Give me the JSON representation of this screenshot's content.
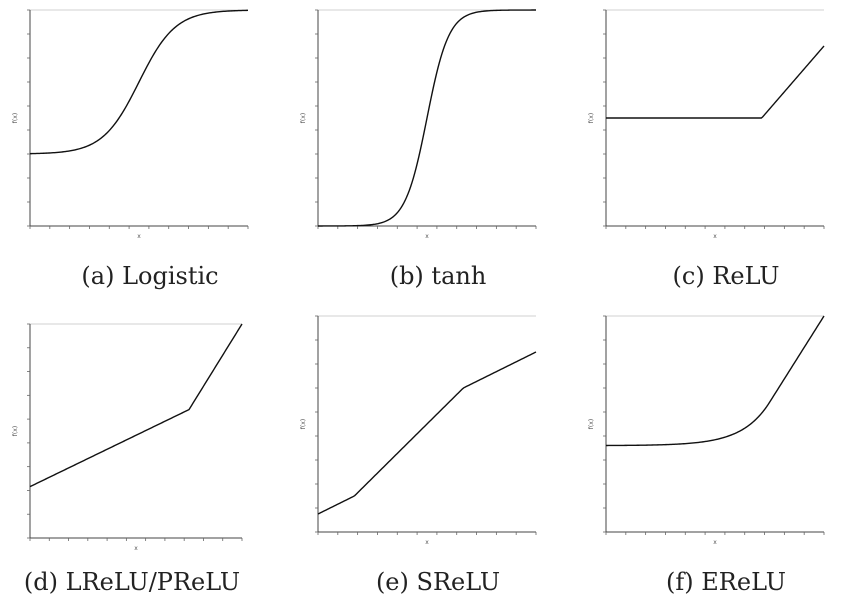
{
  "chart_data": [
    {
      "type": "line",
      "caption": "(a) Logistic",
      "xlabel": "x",
      "ylabel": "f(x)",
      "xlim": [
        -6,
        6
      ],
      "ylim": [
        -0.5,
        1
      ],
      "series": [
        {
          "function": "logistic",
          "x": [
            -6,
            -4,
            -2,
            -1,
            0,
            1,
            2,
            4,
            6
          ],
          "values": [
            0.0025,
            0.018,
            0.119,
            0.269,
            0.5,
            0.731,
            0.881,
            0.982,
            0.998
          ]
        }
      ]
    },
    {
      "type": "line",
      "caption": "(b) tanh",
      "xlabel": "x",
      "ylabel": "f(x)",
      "xlim": [
        -5,
        5
      ],
      "ylim": [
        -1,
        1
      ],
      "series": [
        {
          "function": "tanh",
          "x": [
            -5,
            -3,
            -2,
            -1,
            0,
            1,
            2,
            3,
            5
          ],
          "values": [
            -1.0,
            -0.995,
            -0.964,
            -0.762,
            0.0,
            0.762,
            0.964,
            0.995,
            1.0
          ]
        }
      ]
    },
    {
      "type": "line",
      "caption": "(c) ReLU",
      "xlabel": "x",
      "ylabel": "f(x)",
      "xlim": [
        -5,
        2
      ],
      "ylim": [
        -3,
        3
      ],
      "series": [
        {
          "function": "relu",
          "x": [
            -5,
            0,
            2
          ],
          "values": [
            0,
            0,
            2
          ]
        }
      ]
    },
    {
      "type": "line",
      "caption": "(d) LReLU/PReLU",
      "xlabel": "x",
      "ylabel": "f(x)",
      "xlim": [
        -6,
        2
      ],
      "ylim": [
        -3,
        2
      ],
      "series": [
        {
          "function": "lrelu",
          "x": [
            -6,
            0,
            2
          ],
          "values": [
            -1.8,
            0,
            2
          ]
        }
      ]
    },
    {
      "type": "line",
      "caption": "(e) SReLU",
      "xlabel": "x",
      "ylabel": "f(x)",
      "xlim": [
        -3,
        3
      ],
      "ylim": [
        -3,
        3
      ],
      "series": [
        {
          "function": "srelu",
          "x": [
            -3,
            -2,
            1,
            3
          ],
          "values": [
            -2.5,
            -2,
            1,
            2
          ]
        }
      ]
    },
    {
      "type": "line",
      "caption": "(f) EReLU",
      "xlabel": "x",
      "ylabel": "f(x)",
      "xlim": [
        -6,
        2
      ],
      "ylim": [
        -3,
        2
      ],
      "series": [
        {
          "function": "elu",
          "x": [
            -6,
            -4,
            -2,
            -1,
            0,
            2
          ],
          "values": [
            -0.998,
            -0.982,
            -0.865,
            -0.632,
            0,
            2
          ]
        }
      ]
    }
  ]
}
